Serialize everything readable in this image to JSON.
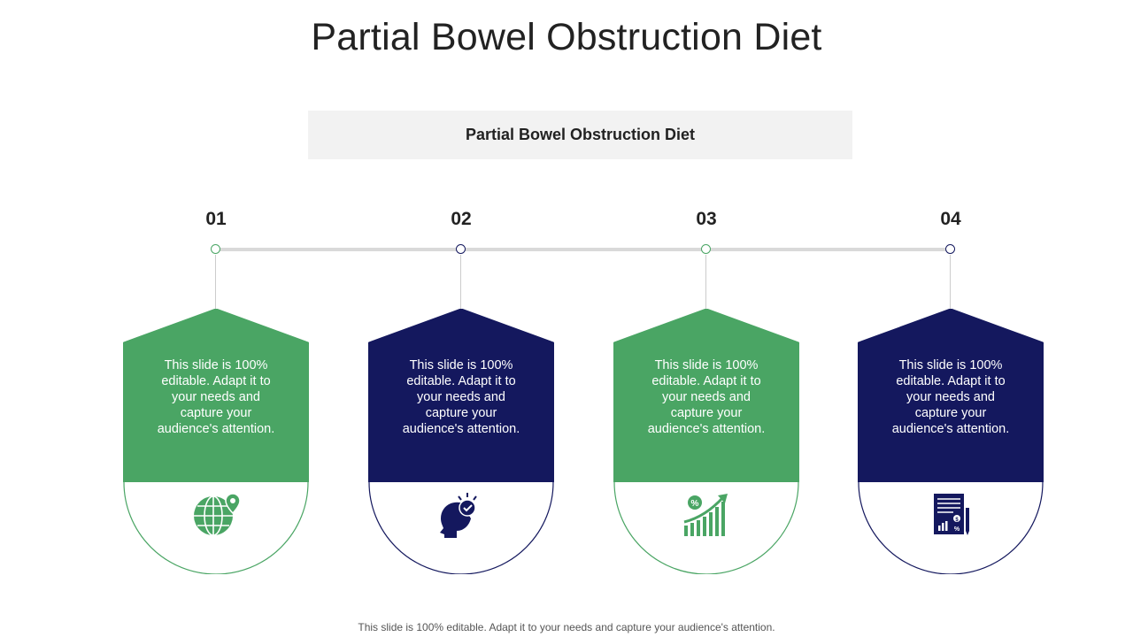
{
  "title": "Partial Bowel Obstruction Diet",
  "subtitle": "Partial Bowel Obstruction Diet",
  "steps": [
    {
      "number": "01",
      "text": "This slide is 100% editable. Adapt it to your needs and capture your audience's attention.",
      "color": "#4aa564",
      "icon": "globe-location-icon"
    },
    {
      "number": "02",
      "text": "This slide is 100% editable. Adapt it to your needs and capture your audience's attention.",
      "color": "#14185e",
      "icon": "head-lightbulb-icon"
    },
    {
      "number": "03",
      "text": "This slide is 100% editable. Adapt it to your needs and capture your audience's attention.",
      "color": "#4aa564",
      "icon": "growth-chart-percent-icon"
    },
    {
      "number": "04",
      "text": "This slide is 100% editable. Adapt it to your needs and capture your audience's attention.",
      "color": "#14185e",
      "icon": "financial-report-icon"
    }
  ],
  "footer": "This slide is 100% editable. Adapt it to your needs and capture your audience's attention."
}
